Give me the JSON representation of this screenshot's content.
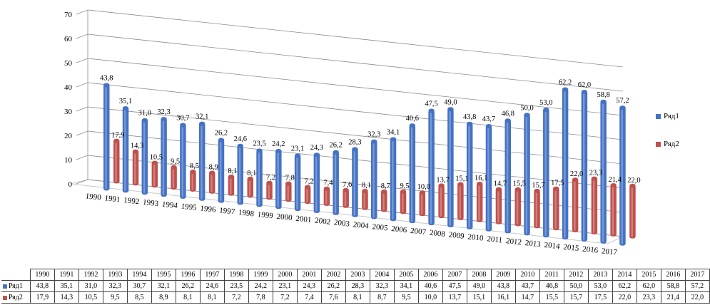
{
  "chart_data": {
    "type": "bar",
    "three_d": true,
    "categories": [
      "1990",
      "1991",
      "1992",
      "1993",
      "1994",
      "1995",
      "1996",
      "1997",
      "1998",
      "1999",
      "2000",
      "2001",
      "2002",
      "2003",
      "2004",
      "2005",
      "2006",
      "2007",
      "2008",
      "2009",
      "2010",
      "2011",
      "2012",
      "2013",
      "2014",
      "2015",
      "2016",
      "2017"
    ],
    "series": [
      {
        "name": "Ряд1",
        "color": "#4472C4",
        "values": [
          43.8,
          35.1,
          31.0,
          32.3,
          30.7,
          32.1,
          26.2,
          24.6,
          23.5,
          24.2,
          23.1,
          24.3,
          26.2,
          28.3,
          32.3,
          34.1,
          40.6,
          47.5,
          49.0,
          43.8,
          43.7,
          46.8,
          50.0,
          53.0,
          62.2,
          62.0,
          58.8,
          57.2
        ]
      },
      {
        "name": "Ряд2",
        "color": "#C0504D",
        "values": [
          17.9,
          14.3,
          10.5,
          9.5,
          8.5,
          8.9,
          8.1,
          8.1,
          7.2,
          7.8,
          7.2,
          7.4,
          7.6,
          8.1,
          8.7,
          9.5,
          10.0,
          13.7,
          15.1,
          16.1,
          14.7,
          15.5,
          15.7,
          17.5,
          22.0,
          23.3,
          21.4,
          22.0
        ]
      }
    ],
    "yticks": [
      "0",
      "10",
      "20",
      "30",
      "40",
      "50",
      "60",
      "70"
    ],
    "ylim": [
      0,
      70
    ],
    "grid": true,
    "legend": "right",
    "data_labels": true,
    "data_table": true,
    "title": "",
    "xlabel": "",
    "ylabel": ""
  }
}
